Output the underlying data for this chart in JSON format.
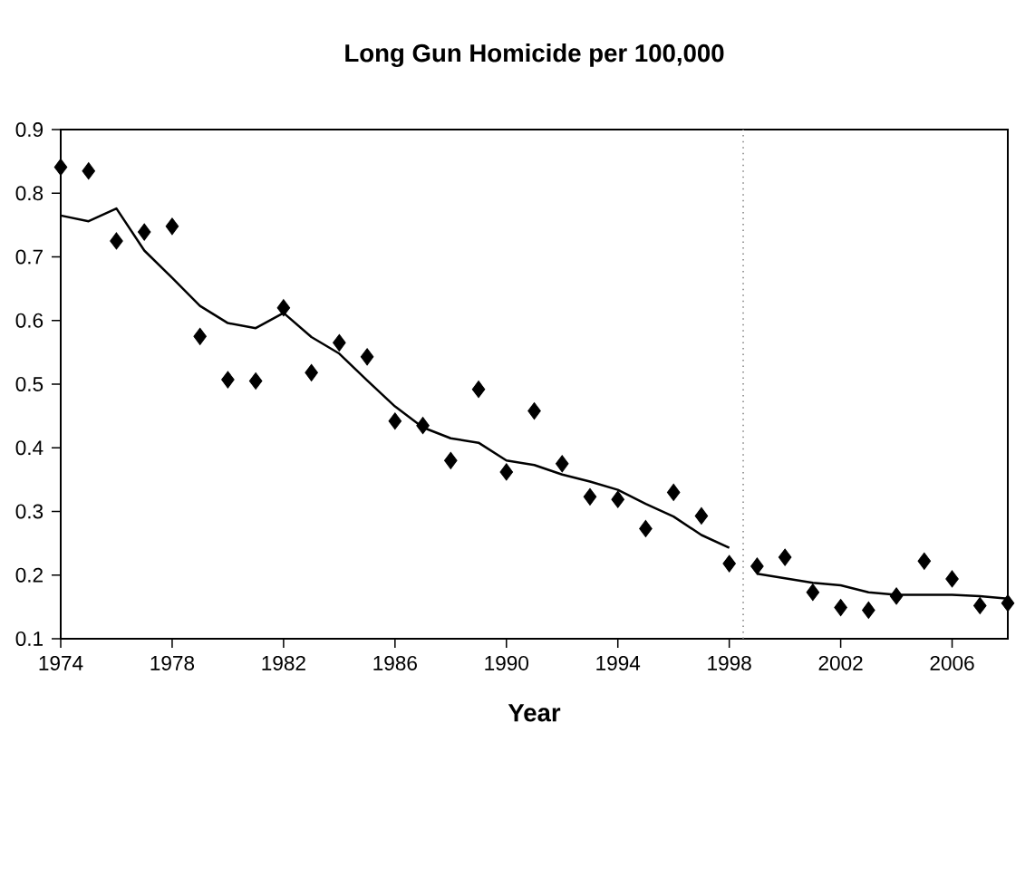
{
  "chart_data": {
    "type": "scatter",
    "title": "Long Gun Homicide per 100,000",
    "xlabel": "Year",
    "x": [
      1974,
      1975,
      1976,
      1977,
      1978,
      1979,
      1980,
      1981,
      1982,
      1983,
      1984,
      1985,
      1986,
      1987,
      1988,
      1989,
      1990,
      1991,
      1992,
      1993,
      1994,
      1995,
      1996,
      1997,
      1998,
      1999,
      2000,
      2001,
      2002,
      2003,
      2004,
      2005,
      2006,
      2007,
      2008
    ],
    "series": [
      {
        "color": "#000000",
        "marker": "diamond",
        "values": [
          0.841,
          0.835,
          0.725,
          0.739,
          0.748,
          0.575,
          0.507,
          0.505,
          0.62,
          0.518,
          0.565,
          0.543,
          0.442,
          0.435,
          0.38,
          0.492,
          0.362,
          0.458,
          0.375,
          0.323,
          0.319,
          0.273,
          0.33,
          0.293,
          0.218,
          0.214,
          0.228,
          0.173,
          0.149,
          0.145,
          0.167,
          0.222,
          0.194,
          0.152,
          0.156
        ]
      },
      {
        "type": "line",
        "color": "#000000",
        "marker": "none",
        "line_style": "solid",
        "x": [
          1974,
          1975,
          1976,
          1977,
          1978,
          1979,
          1980,
          1981,
          1982,
          1983,
          1984,
          1985,
          1986,
          1987,
          1988,
          1989,
          1990,
          1991,
          1992,
          1993,
          1994,
          1995,
          1996,
          1997,
          1998
        ],
        "values": [
          0.765,
          0.756,
          0.776,
          0.71,
          0.667,
          0.623,
          0.596,
          0.588,
          0.612,
          0.574,
          0.548,
          0.506,
          0.465,
          0.432,
          0.415,
          0.408,
          0.38,
          0.373,
          0.358,
          0.347,
          0.334,
          0.312,
          0.292,
          0.263,
          0.243
        ]
      },
      {
        "type": "line",
        "color": "#000000",
        "marker": "none",
        "line_style": "solid",
        "x": [
          1999,
          2000,
          2001,
          2002,
          2003,
          2004,
          2005,
          2006,
          2007,
          2008
        ],
        "values": [
          0.202,
          0.195,
          0.188,
          0.184,
          0.173,
          0.169,
          0.169,
          0.169,
          0.167,
          0.163
        ]
      }
    ],
    "ref_lines": [
      {
        "axis": "x",
        "value": 1998.5,
        "color": "#808080",
        "line_style": "dotted"
      }
    ],
    "xlim": [
      1974,
      2008
    ],
    "xticks": [
      1974,
      1978,
      1982,
      1986,
      1990,
      1994,
      1998,
      2002,
      2006
    ],
    "ylim": [
      0.1,
      0.9
    ],
    "yticks": [
      0.1,
      0.2,
      0.3,
      0.4,
      0.5,
      0.6,
      0.7,
      0.8,
      0.9
    ]
  }
}
